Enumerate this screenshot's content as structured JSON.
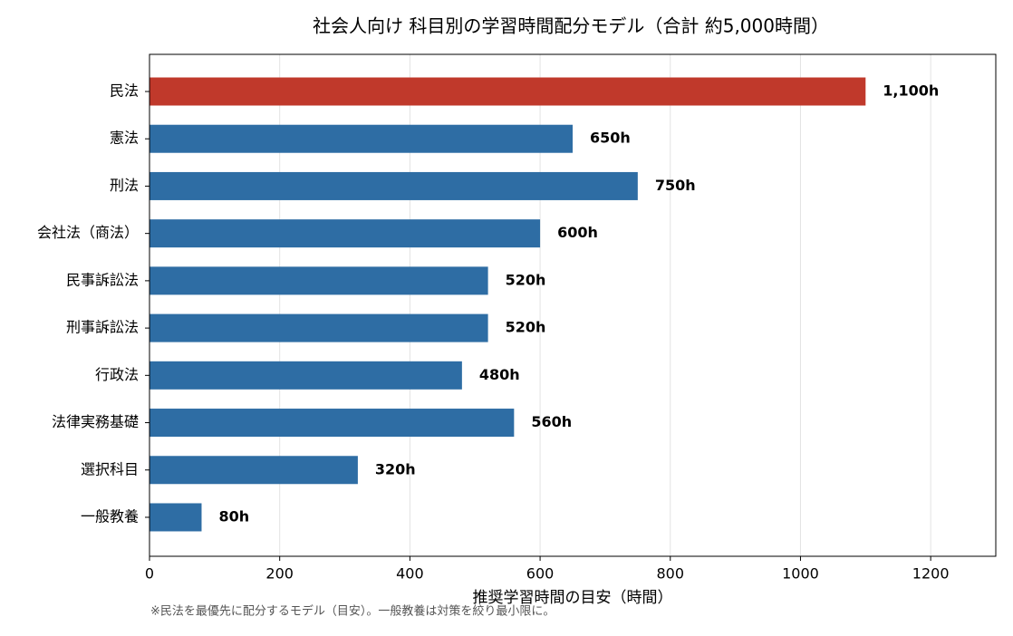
{
  "chart_data": {
    "type": "barh",
    "title": "社会人向け 科目別の学習時間配分モデル（合計 約5,000時間）",
    "xlabel": "推奨学習時間の目安（時間）",
    "note": "※民法を最優先に配分するモデル（目安）。一般教養は対策を絞り最小限に。",
    "categories": [
      "民法",
      "憲法",
      "刑法",
      "会社法（商法）",
      "民事訴訟法",
      "刑事訴訟法",
      "行政法",
      "法律実務基礎",
      "選択科目",
      "一般教養"
    ],
    "values": [
      1100,
      650,
      750,
      600,
      520,
      520,
      480,
      560,
      320,
      80
    ],
    "value_labels": [
      "1,100h",
      "650h",
      "750h",
      "600h",
      "520h",
      "520h",
      "480h",
      "560h",
      "320h",
      "80h"
    ],
    "colors": [
      "#c0392b",
      "#2e6da4",
      "#2e6da4",
      "#2e6da4",
      "#2e6da4",
      "#2e6da4",
      "#2e6da4",
      "#2e6da4",
      "#2e6da4",
      "#2e6da4"
    ],
    "xlim": [
      0,
      1300
    ],
    "xticks": [
      0,
      200,
      400,
      600,
      800,
      1000,
      1200
    ],
    "grid": true
  }
}
